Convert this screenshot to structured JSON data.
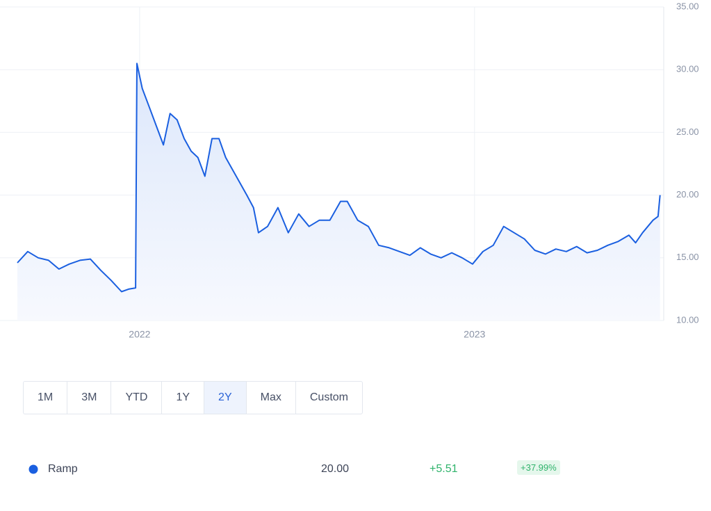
{
  "chart_data": {
    "type": "line",
    "x": [
      2021.635,
      2021.666,
      2021.697,
      2021.728,
      2021.759,
      2021.79,
      2021.822,
      2021.853,
      2021.884,
      2021.915,
      2021.946,
      2021.967,
      2021.988,
      2021.992,
      2022.008,
      2022.029,
      2022.05,
      2022.071,
      2022.091,
      2022.112,
      2022.133,
      2022.154,
      2022.174,
      2022.195,
      2022.216,
      2022.237,
      2022.257,
      2022.278,
      2022.299,
      2022.32,
      2022.34,
      2022.355,
      2022.382,
      2022.413,
      2022.444,
      2022.475,
      2022.506,
      2022.537,
      2022.568,
      2022.6,
      2022.62,
      2022.651,
      2022.683,
      2022.714,
      2022.745,
      2022.776,
      2022.807,
      2022.838,
      2022.869,
      2022.9,
      2022.932,
      2022.963,
      2022.994,
      2023.025,
      2023.056,
      2023.087,
      2023.118,
      2023.149,
      2023.18,
      2023.212,
      2023.243,
      2023.274,
      2023.305,
      2023.336,
      2023.367,
      2023.398,
      2023.429,
      2023.461,
      2023.481,
      2023.502,
      2023.533,
      2023.548,
      2023.554
    ],
    "series": [
      {
        "name": "Ramp",
        "color": "#1a5fe0",
        "values": [
          14.6,
          15.5,
          15.0,
          14.8,
          14.1,
          14.5,
          14.8,
          14.9,
          14.0,
          13.2,
          12.3,
          12.5,
          12.6,
          30.5,
          28.5,
          27.0,
          25.5,
          24.0,
          26.5,
          26.0,
          24.5,
          23.5,
          23.0,
          21.5,
          24.5,
          24.5,
          23.0,
          22.0,
          21.0,
          20.0,
          19.0,
          17.0,
          17.5,
          19.0,
          17.0,
          18.5,
          17.5,
          18.0,
          18.0,
          19.5,
          19.5,
          18.0,
          17.5,
          16.0,
          15.8,
          15.5,
          15.2,
          15.8,
          15.3,
          15.0,
          15.4,
          15.0,
          14.5,
          15.5,
          16.0,
          17.5,
          17.0,
          16.5,
          15.6,
          15.3,
          15.7,
          15.5,
          15.9,
          15.4,
          15.6,
          16.0,
          16.3,
          16.8,
          16.2,
          17.0,
          18.0,
          18.3,
          20.0
        ]
      }
    ],
    "xlim": [
      2021.635,
      2023.565
    ],
    "xticks": [
      2022,
      2023
    ],
    "ylim": [
      10,
      35
    ],
    "yticks": [
      {
        "value": 10,
        "label": "10.00"
      },
      {
        "value": 15,
        "label": "15.00"
      },
      {
        "value": 20,
        "label": "20.00"
      },
      {
        "value": 25,
        "label": "25.00"
      },
      {
        "value": 30,
        "label": "30.00"
      },
      {
        "value": 35,
        "label": "35.00"
      }
    ],
    "grid": true
  },
  "range_buttons": [
    "1M",
    "3M",
    "YTD",
    "1Y",
    "2Y",
    "Max",
    "Custom"
  ],
  "selected_range": "2Y",
  "summary": {
    "name": "Ramp",
    "price": "20.00",
    "change": "+5.51",
    "change_pct": "+37.99%"
  }
}
